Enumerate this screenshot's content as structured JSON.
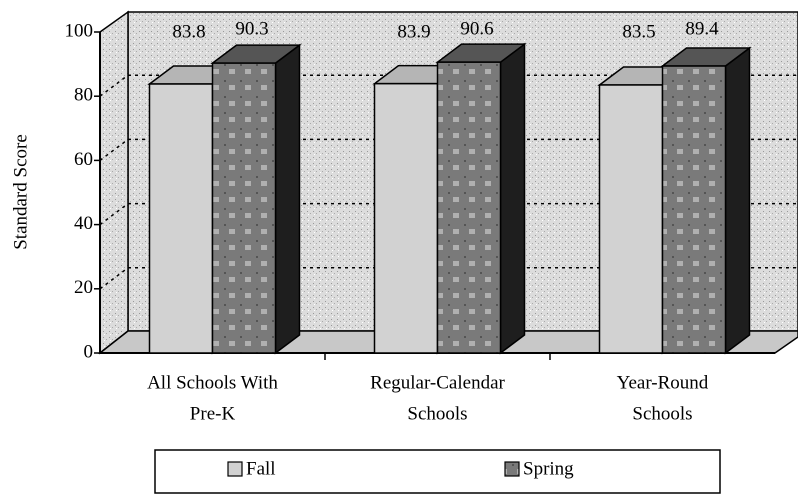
{
  "chart_data": {
    "type": "bar3d",
    "y_label": "Standard Score",
    "categories": [
      [
        "All Schools With",
        "Pre-K"
      ],
      [
        "Regular-Calendar",
        "Schools"
      ],
      [
        "Year-Round",
        "Schools"
      ]
    ],
    "series": [
      {
        "name": "Fall",
        "color": "#d2d2d2",
        "values": [
          83.8,
          83.9,
          83.5
        ]
      },
      {
        "name": "Spring",
        "color": "#7a7a7a",
        "values": [
          90.3,
          90.6,
          89.4
        ]
      }
    ],
    "ylim": [
      0,
      100
    ],
    "yticks": [
      0,
      20,
      40,
      60,
      80,
      100
    ],
    "grid": true,
    "legend": "bottom"
  }
}
